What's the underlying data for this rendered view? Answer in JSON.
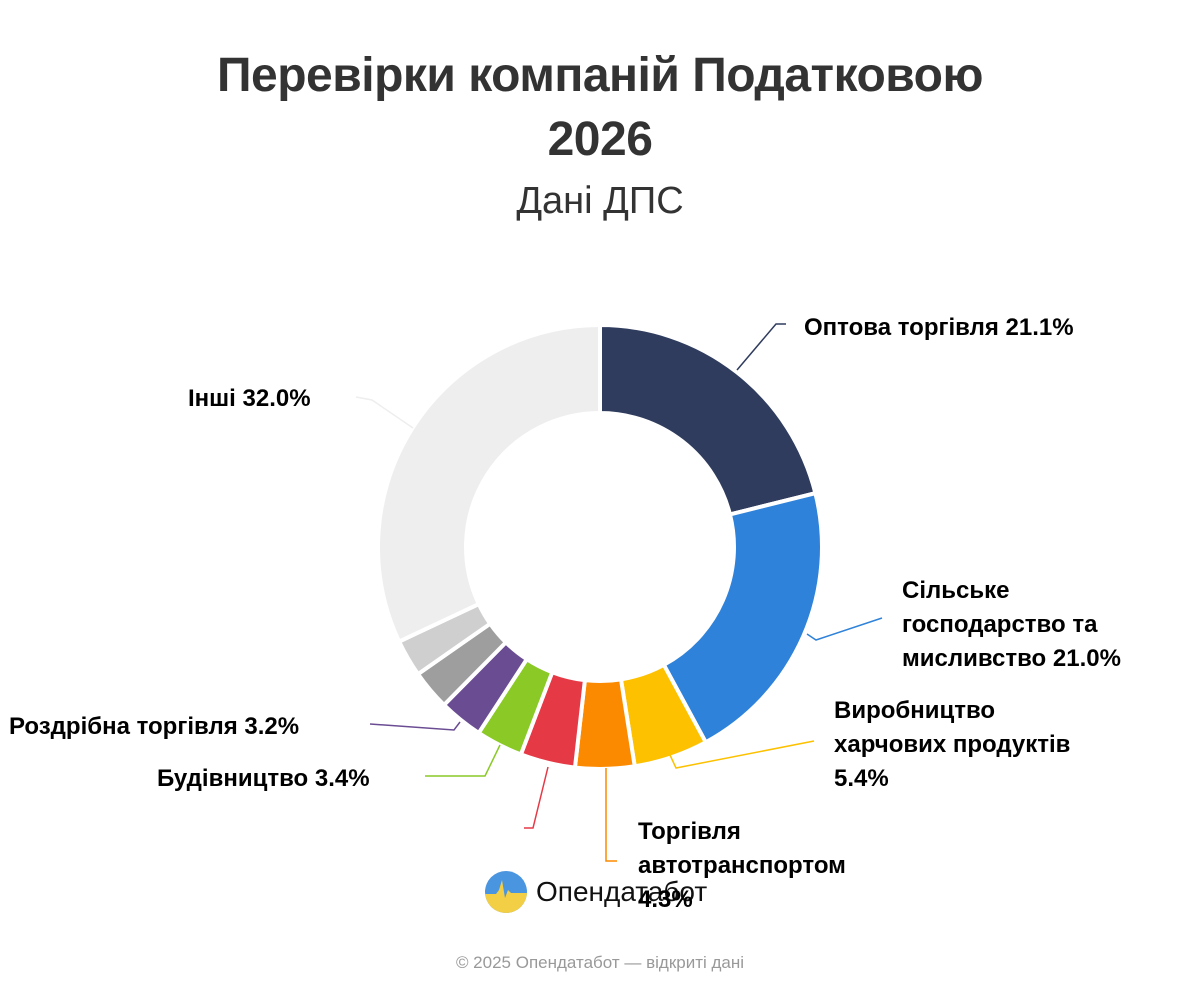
{
  "header": {
    "title_line1": "Перевірки компаній Податковою",
    "title_line2": "2026",
    "subtitle": "Дані ДПС"
  },
  "labels": {
    "optova": "Оптова торгівля 21.1%",
    "silske_l1": "Сільське",
    "silske_l2": "господарство та",
    "silske_l3": "мисливство 21.0%",
    "vyrob_l1": "Виробництво",
    "vyrob_l2": "харчових продуктів",
    "vyrob_l3": "5.4%",
    "torg_l1": "Торгівля",
    "torg_l2": "автотранспортом",
    "torg_l3": "4.3%",
    "budivn": "Будівництво 3.4%",
    "rozdrib": "Роздрібна торгівля 3.2%",
    "inshi": "Інші 32.0%"
  },
  "logo": {
    "icon": "opendatabot-logo-icon",
    "text": "Опендатабот"
  },
  "footer": {
    "text": "© 2025 Опендатабот — відкриті дані"
  },
  "chart_data": {
    "type": "pie",
    "variant": "donut",
    "title": "Перевірки компаній Податковою 2026",
    "subtitle": "Дані ДПС",
    "categories": [
      "Оптова торгівля",
      "Сільське господарство та мисливство",
      "Виробництво харчових продуктів",
      "Торгівля автотранспортом",
      "(unlabeled red slice)",
      "Будівництво",
      "Роздрібна торгівля",
      "(unlabeled gray slice)",
      "(unlabeled light gray slice)",
      "Інші"
    ],
    "values": [
      21.1,
      21.0,
      5.4,
      4.3,
      4.0,
      3.4,
      3.2,
      2.9,
      2.7,
      32.0
    ],
    "colors": [
      "#2f3c5e",
      "#2e82d9",
      "#fdc100",
      "#fb8a00",
      "#e63946",
      "#8ac926",
      "#6a4c93",
      "#9e9e9e",
      "#cfcfcf",
      "#eeeeee"
    ],
    "legend": "none (direct labels with leader lines)",
    "start_angle_deg": 0,
    "direction": "clockwise"
  }
}
